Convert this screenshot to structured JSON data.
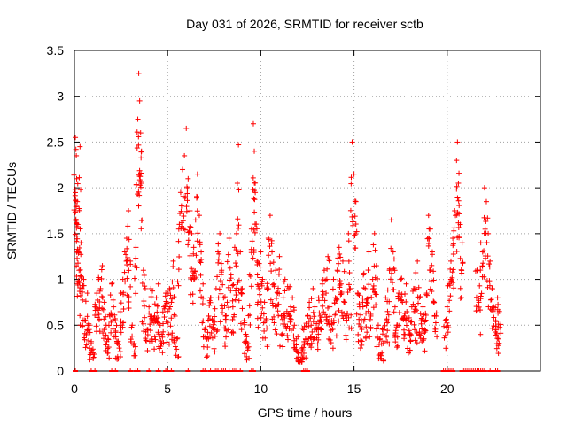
{
  "chart_data": {
    "type": "scatter",
    "title": "Day 031 of 2026, SRMTID for receiver sctb",
    "xlabel": "GPS time / hours",
    "ylabel": "SRMTID / TECUs",
    "xlim": [
      0,
      25
    ],
    "ylim": [
      0,
      3.5
    ],
    "x_ticks": [
      0,
      5,
      10,
      15,
      20
    ],
    "x_tick_labels": [
      "0",
      "5",
      "10",
      "15",
      "20"
    ],
    "y_ticks": [
      0,
      0.5,
      1,
      1.5,
      2,
      2.5,
      3,
      3.5
    ],
    "y_tick_labels": [
      "0",
      "0.5",
      "1",
      "1.5",
      "2",
      "2.5",
      "3",
      "3.5"
    ],
    "grid": true,
    "marker": "plus",
    "series": [
      {
        "name": "SRMTID",
        "color": "#ff0000",
        "points": [
          [
            0.05,
            2.55
          ],
          [
            0.08,
            2.42
          ],
          [
            0.1,
            2.35
          ],
          [
            0.12,
            2.1
          ],
          [
            0.15,
            1.85
          ],
          [
            0.18,
            1.6
          ],
          [
            0.2,
            1.3
          ],
          [
            0.25,
            1.1
          ],
          [
            0.3,
            2.45
          ],
          [
            0.35,
            1.4
          ],
          [
            0.4,
            0.9
          ],
          [
            0.5,
            1.0
          ],
          [
            0.6,
            0.55
          ],
          [
            0.7,
            0.85
          ],
          [
            0.8,
            0.5
          ],
          [
            0.9,
            0.3
          ],
          [
            1.0,
            0.2
          ],
          [
            1.1,
            0.7
          ],
          [
            1.2,
            0.85
          ],
          [
            1.3,
            1.0
          ],
          [
            1.4,
            0.9
          ],
          [
            1.5,
            1.15
          ],
          [
            1.6,
            0.75
          ],
          [
            1.7,
            0.5
          ],
          [
            1.8,
            0.35
          ],
          [
            1.9,
            0.6
          ],
          [
            2.0,
            0.95
          ],
          [
            2.1,
            0.7
          ],
          [
            2.2,
            0.55
          ],
          [
            2.3,
            0.3
          ],
          [
            2.4,
            0.25
          ],
          [
            2.5,
            0.85
          ],
          [
            2.6,
            1.0
          ],
          [
            2.7,
            1.3
          ],
          [
            2.8,
            1.45
          ],
          [
            2.9,
            1.75
          ],
          [
            3.0,
            1.2
          ],
          [
            3.1,
            0.5
          ],
          [
            3.2,
            0.3
          ],
          [
            3.3,
            1.35
          ],
          [
            3.4,
            2.75
          ],
          [
            3.45,
            3.25
          ],
          [
            3.5,
            2.95
          ],
          [
            3.55,
            2.6
          ],
          [
            3.6,
            2.4
          ],
          [
            3.7,
            1.1
          ],
          [
            3.8,
            0.9
          ],
          [
            3.9,
            0.45
          ],
          [
            4.0,
            0.7
          ],
          [
            4.1,
            0.9
          ],
          [
            4.2,
            0.55
          ],
          [
            4.3,
            0.6
          ],
          [
            4.4,
            0.8
          ],
          [
            4.5,
            0.95
          ],
          [
            4.6,
            0.5
          ],
          [
            4.7,
            0.4
          ],
          [
            4.8,
            0.7
          ],
          [
            4.9,
            0.85
          ],
          [
            5.0,
            0.65
          ],
          [
            5.1,
            0.9
          ],
          [
            5.2,
            0.75
          ],
          [
            5.3,
            1.2
          ],
          [
            5.4,
            0.6
          ],
          [
            5.5,
            0.35
          ],
          [
            5.6,
            1.55
          ],
          [
            5.7,
            1.95
          ],
          [
            5.8,
            2.2
          ],
          [
            5.9,
            2.35
          ],
          [
            6.0,
            2.65
          ],
          [
            6.1,
            2.1
          ],
          [
            6.2,
            1.75
          ],
          [
            6.3,
            1.5
          ],
          [
            6.4,
            1.35
          ],
          [
            6.5,
            1.65
          ],
          [
            6.6,
            2.15
          ],
          [
            6.7,
            1.7
          ],
          [
            6.8,
            1.3
          ],
          [
            6.9,
            0.95
          ],
          [
            7.0,
            0.45
          ],
          [
            7.1,
            0.35
          ],
          [
            7.2,
            0.6
          ],
          [
            7.3,
            0.8
          ],
          [
            7.4,
            0.55
          ],
          [
            7.5,
            0.45
          ],
          [
            7.6,
            0.9
          ],
          [
            7.7,
            1.3
          ],
          [
            7.8,
            1.5
          ],
          [
            7.9,
            1.1
          ],
          [
            8.0,
            0.8
          ],
          [
            8.1,
            0.6
          ],
          [
            8.2,
            0.75
          ],
          [
            8.3,
            1.45
          ],
          [
            8.4,
            1.05
          ],
          [
            8.5,
            0.7
          ],
          [
            8.6,
            1.35
          ],
          [
            8.7,
            1.5
          ],
          [
            8.8,
            2.47
          ],
          [
            8.9,
            1.3
          ],
          [
            9.0,
            0.9
          ],
          [
            9.1,
            0.55
          ],
          [
            9.2,
            0.4
          ],
          [
            9.3,
            0.3
          ],
          [
            9.4,
            1.05
          ],
          [
            9.5,
            1.55
          ],
          [
            9.6,
            2.7
          ],
          [
            9.65,
            2.4
          ],
          [
            9.7,
            1.95
          ],
          [
            9.8,
            1.2
          ],
          [
            9.9,
            0.9
          ],
          [
            10.0,
            1.3
          ],
          [
            10.1,
            1.0
          ],
          [
            10.2,
            0.75
          ],
          [
            10.3,
            0.55
          ],
          [
            10.4,
            1.45
          ],
          [
            10.5,
            1.7
          ],
          [
            10.6,
            1.3
          ],
          [
            10.7,
            0.95
          ],
          [
            10.8,
            1.1
          ],
          [
            10.9,
            0.85
          ],
          [
            11.0,
            1.25
          ],
          [
            11.1,
            0.6
          ],
          [
            11.2,
            0.8
          ],
          [
            11.3,
            1.0
          ],
          [
            11.4,
            0.65
          ],
          [
            11.5,
            0.9
          ],
          [
            11.6,
            0.7
          ],
          [
            11.7,
            0.8
          ],
          [
            11.8,
            0.5
          ],
          [
            11.9,
            0.35
          ],
          [
            12.0,
            0.2
          ],
          [
            12.1,
            0.1
          ],
          [
            12.2,
            0.25
          ],
          [
            12.3,
            0.45
          ],
          [
            12.4,
            0.35
          ],
          [
            12.5,
            0.6
          ],
          [
            12.6,
            0.75
          ],
          [
            12.7,
            0.5
          ],
          [
            12.8,
            0.9
          ],
          [
            12.9,
            0.7
          ],
          [
            13.0,
            0.45
          ],
          [
            13.1,
            0.8
          ],
          [
            13.2,
            0.6
          ],
          [
            13.3,
            0.95
          ],
          [
            13.4,
            1.1
          ],
          [
            13.5,
            0.85
          ],
          [
            13.6,
            1.25
          ],
          [
            13.7,
            0.7
          ],
          [
            13.8,
            0.55
          ],
          [
            13.9,
            1.0
          ],
          [
            14.0,
            0.8
          ],
          [
            14.1,
            1.1
          ],
          [
            14.2,
            1.35
          ],
          [
            14.3,
            0.95
          ],
          [
            14.4,
            1.2
          ],
          [
            14.5,
            0.75
          ],
          [
            14.6,
            0.6
          ],
          [
            14.7,
            1.5
          ],
          [
            14.8,
            0.9
          ],
          [
            14.9,
            2.5
          ],
          [
            15.0,
            2.15
          ],
          [
            15.1,
            1.85
          ],
          [
            15.2,
            0.85
          ],
          [
            15.3,
            0.7
          ],
          [
            15.4,
            0.55
          ],
          [
            15.5,
            1.05
          ],
          [
            15.6,
            0.9
          ],
          [
            15.7,
            0.75
          ],
          [
            15.8,
            1.3
          ],
          [
            15.9,
            0.6
          ],
          [
            16.0,
            1.0
          ],
          [
            16.1,
            1.5
          ],
          [
            16.2,
            1.15
          ],
          [
            16.3,
            0.5
          ],
          [
            16.4,
            0.35
          ],
          [
            16.5,
            0.2
          ],
          [
            16.6,
            0.45
          ],
          [
            16.7,
            0.8
          ],
          [
            16.8,
            0.65
          ],
          [
            16.9,
            1.1
          ],
          [
            17.0,
            1.65
          ],
          [
            17.1,
            1.3
          ],
          [
            17.2,
            0.7
          ],
          [
            17.3,
            0.5
          ],
          [
            17.4,
            0.85
          ],
          [
            17.5,
            1.0
          ],
          [
            17.6,
            0.75
          ],
          [
            17.7,
            0.6
          ],
          [
            17.8,
            0.95
          ],
          [
            17.9,
            0.55
          ],
          [
            18.0,
            0.4
          ],
          [
            18.1,
            0.7
          ],
          [
            18.2,
            0.9
          ],
          [
            18.3,
            0.65
          ],
          [
            18.4,
            1.2
          ],
          [
            18.5,
            0.8
          ],
          [
            18.6,
            0.55
          ],
          [
            18.7,
            0.7
          ],
          [
            18.8,
            0.45
          ],
          [
            18.9,
            0.85
          ],
          [
            19.0,
            1.7
          ],
          [
            19.1,
            1.55
          ],
          [
            19.2,
            1.3
          ],
          [
            19.3,
            0.75
          ],
          [
            19.4,
            0.6
          ],
          [
            19.9,
            0.55
          ],
          [
            20.0,
            0.7
          ],
          [
            20.1,
            0.95
          ],
          [
            20.2,
            1.2
          ],
          [
            20.3,
            1.45
          ],
          [
            20.4,
            1.75
          ],
          [
            20.5,
            2.3
          ],
          [
            20.55,
            2.5
          ],
          [
            20.6,
            2.05
          ],
          [
            20.7,
            1.6
          ],
          [
            20.8,
            1.4
          ],
          [
            21.6,
            1.1
          ],
          [
            21.7,
            0.75
          ],
          [
            21.8,
            1.4
          ],
          [
            21.9,
            1.3
          ],
          [
            22.0,
            2.0
          ],
          [
            22.1,
            1.85
          ],
          [
            22.2,
            1.5
          ],
          [
            22.3,
            1.2
          ],
          [
            22.4,
            0.9
          ],
          [
            22.5,
            0.7
          ],
          [
            22.6,
            0.55
          ],
          [
            22.7,
            0.8
          ],
          [
            22.75,
            0.35
          ],
          [
            22.8,
            0.65
          ]
        ]
      }
    ],
    "zero_points_x": [
      0.05,
      0.9,
      1.1,
      2.0,
      2.2,
      3.0,
      3.3,
      3.4,
      4.0,
      4.5,
      4.9,
      5.0,
      5.2,
      6.1,
      6.9,
      7.0,
      7.3,
      7.5,
      7.6,
      7.7,
      7.9,
      8.0,
      8.1,
      8.3,
      8.5,
      8.6,
      8.7,
      8.9,
      9.5,
      9.6,
      12.3,
      12.4,
      12.5,
      19.8,
      19.9,
      20.0,
      20.1,
      20.2,
      20.3,
      20.8,
      20.9,
      21.0,
      21.1,
      21.2,
      21.3,
      21.4,
      21.5,
      21.6,
      21.7,
      21.8,
      21.9,
      22.0,
      22.3,
      22.6,
      22.7
    ]
  }
}
